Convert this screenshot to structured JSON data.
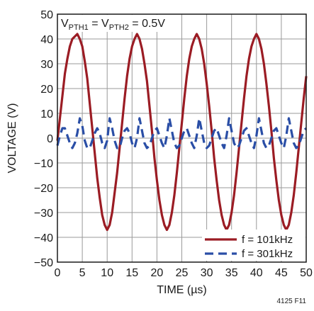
{
  "chart_data": {
    "type": "line",
    "xlabel": "TIME (µs)",
    "ylabel": "VOLTAGE (V)",
    "xlim": [
      0,
      50
    ],
    "ylim": [
      -50,
      50
    ],
    "xticks": [
      0,
      5,
      10,
      15,
      20,
      25,
      30,
      35,
      40,
      45,
      50
    ],
    "yticks": [
      50,
      40,
      30,
      20,
      10,
      0,
      -10,
      -20,
      -30,
      -40,
      -50
    ],
    "xtick_labels": [
      "0",
      "5",
      "10",
      "15",
      "20",
      "25",
      "30",
      "35",
      "40",
      "45",
      "50"
    ],
    "ytick_labels": [
      "50",
      "40",
      "30",
      "20",
      "10",
      "0",
      "−10",
      "−20",
      "−30",
      "−40",
      "−50"
    ],
    "grid": true,
    "legend_position": "bottom-right",
    "annotation": {
      "main": "V",
      "sub1": "PTH1",
      "mid": " = V",
      "sub2": "PTH2",
      "tail": " = 0.5V"
    },
    "figure_id": "4125 F11",
    "series": [
      {
        "name": "f = 101kHz",
        "color": "#9b1c24",
        "style": "solid",
        "frequency_khz": 101,
        "x": [
          0,
          0.5,
          1,
          1.5,
          2,
          2.5,
          3,
          3.5,
          4,
          4.5,
          5,
          5.5,
          6,
          6.5,
          7,
          7.5,
          8,
          8.5,
          9,
          9.5,
          10,
          10.5,
          11,
          11.5,
          12,
          12.5,
          13,
          13.5,
          14,
          14.5,
          15,
          15.5,
          16,
          16.5,
          17,
          17.5,
          18,
          18.5,
          19,
          19.5,
          20,
          20.5,
          21,
          21.5,
          22,
          22.5,
          23,
          23.5,
          24,
          24.5,
          25,
          25.5,
          26,
          26.5,
          27,
          27.5,
          28,
          28.5,
          29,
          29.5,
          30,
          30.5,
          31,
          31.5,
          32,
          32.5,
          33,
          33.5,
          34,
          34.5,
          35,
          35.5,
          36,
          36.5,
          37,
          37.5,
          38,
          38.5,
          39,
          39.5,
          40,
          40.5,
          41,
          41.5,
          42,
          42.5,
          43,
          43.5,
          44,
          44.5,
          45,
          45.5,
          46,
          46.5,
          47,
          47.5,
          48,
          48.5,
          49,
          49.5,
          50
        ],
        "y": [
          -1,
          8,
          17,
          26,
          32,
          37,
          40,
          41,
          42,
          40,
          37,
          31,
          24,
          14,
          4,
          -6,
          -16,
          -24,
          -31,
          -35,
          -37,
          -35,
          -30,
          -22,
          -14,
          -4,
          6,
          16,
          25,
          32,
          37,
          40,
          42,
          40,
          36,
          30,
          23,
          13,
          3,
          -8,
          -17,
          -25,
          -31,
          -35,
          -37,
          -35,
          -30,
          -23,
          -14,
          -4,
          6,
          16,
          25,
          32,
          37,
          40,
          42,
          40,
          36,
          30,
          22,
          13,
          3,
          -8,
          -17,
          -25,
          -31,
          -35,
          -37,
          -35,
          -30,
          -23,
          -14,
          -4,
          6,
          16,
          25,
          32,
          37,
          40,
          42,
          40,
          36,
          30,
          22,
          13,
          3,
          -8,
          -17,
          -25,
          -31,
          -35,
          -37,
          -35,
          -30,
          -23,
          -14,
          -4,
          6,
          16,
          25
        ]
      },
      {
        "name": "f = 301kHz",
        "color": "#2a4ea6",
        "style": "dashed",
        "frequency_khz": 301,
        "x": [
          0,
          0.5,
          1,
          1.5,
          2,
          2.5,
          3,
          3.5,
          4,
          4.5,
          5,
          5.5,
          6,
          6.5,
          7,
          7.5,
          8,
          8.5,
          9,
          9.5,
          10,
          10.5,
          11,
          11.5,
          12,
          12.5,
          13,
          13.5,
          14,
          14.5,
          15,
          15.5,
          16,
          16.5,
          17,
          17.5,
          18,
          18.5,
          19,
          19.5,
          20,
          20.5,
          21,
          21.5,
          22,
          22.5,
          23,
          23.5,
          24,
          24.5,
          25,
          25.5,
          26,
          26.5,
          27,
          27.5,
          28,
          28.5,
          29,
          29.5,
          30,
          30.5,
          31,
          31.5,
          32,
          32.5,
          33,
          33.5,
          34,
          34.5,
          35,
          35.5,
          36,
          36.5,
          37,
          37.5,
          38,
          38.5,
          39,
          39.5,
          40,
          40.5,
          41,
          41.5,
          42,
          42.5,
          43,
          43.5,
          44,
          44.5,
          45,
          45.5,
          46,
          46.5,
          47,
          47.5,
          48,
          48.5,
          49,
          49.5,
          50
        ],
        "y": [
          -3,
          1,
          4,
          4,
          1,
          -2,
          -4,
          -2,
          2,
          8,
          5,
          -1,
          -4,
          -4,
          -1,
          2,
          4,
          2,
          -2,
          -4,
          -1,
          8,
          4,
          -1,
          -4,
          -4,
          0,
          3,
          4,
          2,
          -2,
          -4,
          0,
          8,
          3,
          -2,
          -4,
          -3,
          0,
          3,
          4,
          1,
          -2,
          -4,
          1,
          8,
          3,
          -2,
          -4,
          -3,
          0,
          3,
          4,
          1,
          -2,
          -4,
          1,
          8,
          3,
          -2,
          -4,
          -3,
          0,
          3,
          4,
          1,
          -2,
          -4,
          1,
          8,
          3,
          -2,
          -4,
          -3,
          0,
          3,
          4,
          1,
          -2,
          -4,
          1,
          8,
          3,
          -2,
          -4,
          -3,
          0,
          3,
          4,
          1,
          -2,
          -4,
          1,
          8,
          3,
          -2,
          -4,
          -3,
          0,
          3,
          4
        ]
      }
    ]
  }
}
